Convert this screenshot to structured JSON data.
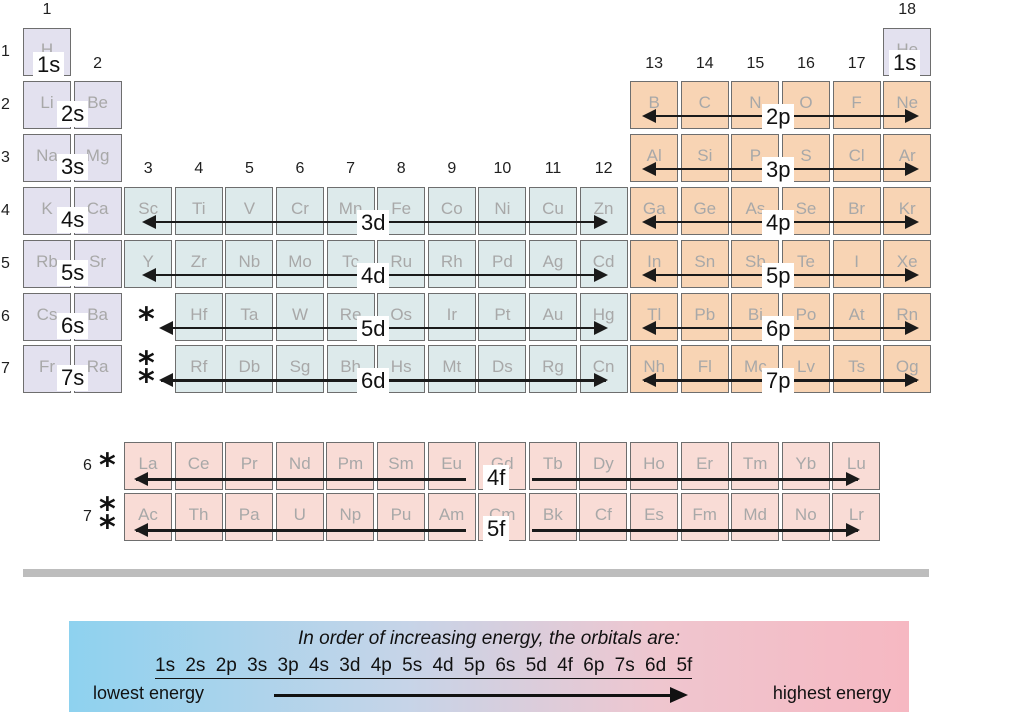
{
  "groups": [
    "1",
    "2",
    "3",
    "4",
    "5",
    "6",
    "7",
    "8",
    "9",
    "10",
    "11",
    "12",
    "13",
    "14",
    "15",
    "16",
    "17",
    "18"
  ],
  "periods": [
    "1",
    "2",
    "3",
    "4",
    "5",
    "6",
    "7"
  ],
  "main_table": [
    [
      "H",
      "",
      "",
      "",
      "",
      "",
      "",
      "",
      "",
      "",
      "",
      "",
      "",
      "",
      "",
      "",
      "",
      "He"
    ],
    [
      "Li",
      "Be",
      "",
      "",
      "",
      "",
      "",
      "",
      "",
      "",
      "",
      "",
      "B",
      "C",
      "N",
      "O",
      "F",
      "Ne"
    ],
    [
      "Na",
      "Mg",
      "",
      "",
      "",
      "",
      "",
      "",
      "",
      "",
      "",
      "",
      "Al",
      "Si",
      "P",
      "S",
      "Cl",
      "Ar"
    ],
    [
      "K",
      "Ca",
      "Sc",
      "Ti",
      "V",
      "Cr",
      "Mn",
      "Fe",
      "Co",
      "Ni",
      "Cu",
      "Zn",
      "Ga",
      "Ge",
      "As",
      "Se",
      "Br",
      "Kr"
    ],
    [
      "Rb",
      "Sr",
      "Y",
      "Zr",
      "Nb",
      "Mo",
      "Tc",
      "Ru",
      "Rh",
      "Pd",
      "Ag",
      "Cd",
      "In",
      "Sn",
      "Sb",
      "Te",
      "I",
      "Xe"
    ],
    [
      "Cs",
      "Ba",
      "",
      "Hf",
      "Ta",
      "W",
      "Re",
      "Os",
      "Ir",
      "Pt",
      "Au",
      "Hg",
      "Tl",
      "Pb",
      "Bi",
      "Po",
      "At",
      "Rn"
    ],
    [
      "Fr",
      "Ra",
      "",
      "Rf",
      "Db",
      "Sg",
      "Bh",
      "Hs",
      "Mt",
      "Ds",
      "Rg",
      "Cn",
      "Nh",
      "Fl",
      "Mc",
      "Lv",
      "Ts",
      "Og"
    ]
  ],
  "f_rows": [
    {
      "period": "6",
      "elements": [
        "La",
        "Ce",
        "Pr",
        "Nd",
        "Pm",
        "Sm",
        "Eu",
        "Gd",
        "Tb",
        "Dy",
        "Ho",
        "Er",
        "Tm",
        "Yb",
        "Lu"
      ]
    },
    {
      "period": "7",
      "elements": [
        "Ac",
        "Th",
        "Pa",
        "U",
        "Np",
        "Pu",
        "Am",
        "Cm",
        "Bk",
        "Cf",
        "Es",
        "Fm",
        "Md",
        "No",
        "Lr"
      ]
    }
  ],
  "orbitals": {
    "s": [
      "1s",
      "2s",
      "3s",
      "4s",
      "5s",
      "6s",
      "7s"
    ],
    "he": "1s",
    "p": [
      "2p",
      "3p",
      "4p",
      "5p",
      "6p",
      "7p"
    ],
    "d": [
      "3d",
      "4d",
      "5d",
      "6d"
    ],
    "f": [
      "4f",
      "5f"
    ]
  },
  "markers": {
    "single": "*",
    "double": "**"
  },
  "block_colors": {
    "s": "#e3e1ef",
    "p": "#f8d4b4",
    "d": "#ddeaeb",
    "f": "#f9dcd6"
  },
  "legend": {
    "title": "In order of increasing energy, the orbitals are:",
    "sequence": [
      "1s",
      "2s",
      "2p",
      "3s",
      "3p",
      "4s",
      "3d",
      "4p",
      "5s",
      "4d",
      "5p",
      "6s",
      "5d",
      "4f",
      "6p",
      "7s",
      "6d",
      "5f"
    ],
    "low_label": "lowest energy",
    "high_label": "highest energy"
  }
}
